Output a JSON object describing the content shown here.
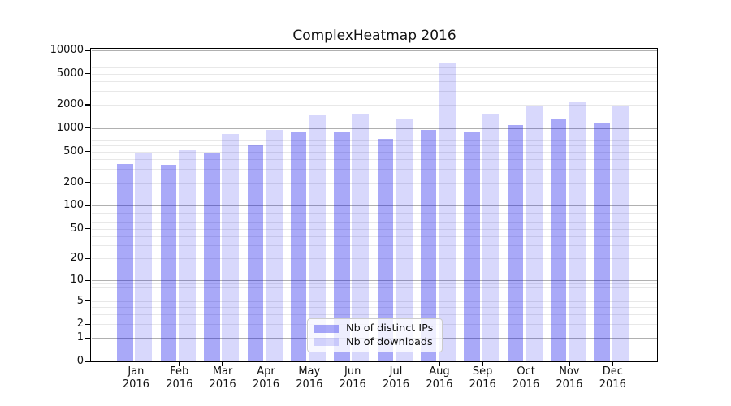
{
  "chart_data": {
    "type": "bar",
    "title": "ComplexHeatmap 2016",
    "categories": [
      "Jan 2016",
      "Feb 2016",
      "Mar 2016",
      "Apr 2016",
      "May 2016",
      "Jun 2016",
      "Jul 2016",
      "Aug 2016",
      "Sep 2016",
      "Oct 2016",
      "Nov 2016",
      "Dec 2016"
    ],
    "series": [
      {
        "name": "Nb of distinct IPs",
        "color": "rgba(10,10,235,0.35)",
        "rendered_color": "#a9a9f5",
        "values": [
          345,
          340,
          480,
          610,
          885,
          875,
          730,
          945,
          910,
          1090,
          1300,
          1140
        ]
      },
      {
        "name": "Nb of downloads",
        "color": "rgba(10,10,235,0.16)",
        "rendered_color": "#d8d8f8",
        "values": [
          485,
          525,
          840,
          945,
          1470,
          1505,
          1305,
          6890,
          1515,
          1900,
          2180,
          1930
        ]
      }
    ],
    "xlabel": "",
    "ylabel": "",
    "yscale": "log1p",
    "ylim": [
      0,
      10000
    ],
    "y_ticks": [
      0,
      1,
      2,
      5,
      10,
      20,
      50,
      100,
      200,
      500,
      1000,
      2000,
      5000,
      10000
    ],
    "grid": {
      "major_at": [
        1,
        10,
        100,
        1000,
        10000
      ],
      "major_color": "#b0b0b0",
      "minor_color": "#e8e8e8",
      "minor_subs": [
        2,
        3,
        4,
        5,
        6,
        7,
        8,
        9
      ]
    },
    "legend_position": "lower center",
    "background": "#ffffff",
    "text_color": "#111111"
  }
}
